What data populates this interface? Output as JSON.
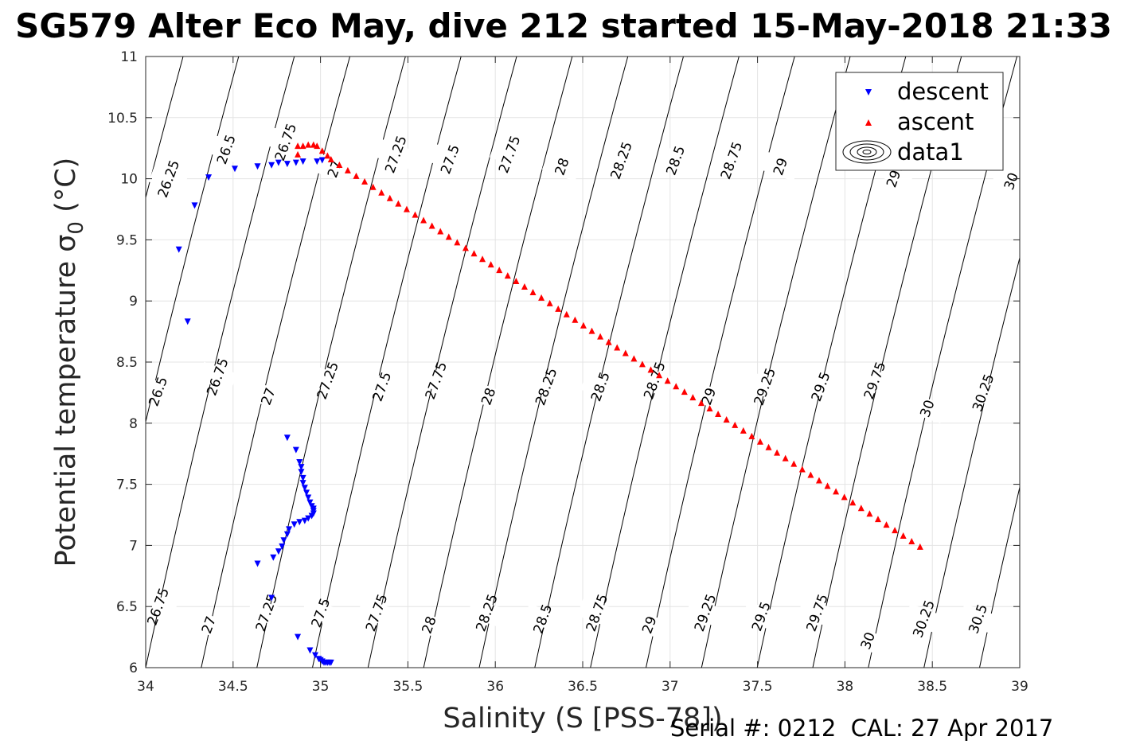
{
  "chart_data": {
    "type": "scatter",
    "title": "SG579 Alter Eco May, dive 212 started 15-May-2018 21:33",
    "xlabel": "Salinity (S [PSS-78])",
    "ylabel": "Potential temperature σ",
    "ylabel_sub": "0",
    "ylabel_unit": "(°C)",
    "xlim": [
      34,
      39
    ],
    "ylim": [
      6,
      11
    ],
    "x_ticks": [
      34,
      34.5,
      35,
      35.5,
      36,
      36.5,
      37,
      37.5,
      38,
      38.5,
      39
    ],
    "y_ticks": [
      6,
      6.5,
      7,
      7.5,
      8,
      8.5,
      9,
      9.5,
      10,
      10.5,
      11
    ],
    "grid": true,
    "legend_position": "top-right",
    "legend": [
      "descent",
      "ascent",
      "data1"
    ],
    "series": [
      {
        "name": "descent",
        "color": "#0000ff",
        "marker": "triangle-down",
        "points": [
          [
            34.19,
            9.42
          ],
          [
            34.24,
            8.83
          ],
          [
            34.28,
            9.78
          ],
          [
            34.36,
            10.01
          ],
          [
            34.51,
            10.08
          ],
          [
            34.64,
            10.1
          ],
          [
            34.72,
            10.11
          ],
          [
            34.76,
            10.13
          ],
          [
            34.81,
            10.12
          ],
          [
            34.86,
            10.13
          ],
          [
            34.9,
            10.14
          ],
          [
            34.98,
            10.14
          ],
          [
            35.01,
            10.15
          ],
          [
            34.81,
            7.88
          ],
          [
            34.86,
            7.78
          ],
          [
            34.88,
            7.68
          ],
          [
            34.89,
            7.64
          ],
          [
            34.89,
            7.6
          ],
          [
            34.9,
            7.55
          ],
          [
            34.9,
            7.51
          ],
          [
            34.91,
            7.47
          ],
          [
            34.92,
            7.43
          ],
          [
            34.93,
            7.39
          ],
          [
            34.94,
            7.35
          ],
          [
            34.95,
            7.32
          ],
          [
            34.96,
            7.3
          ],
          [
            34.96,
            7.28
          ],
          [
            34.96,
            7.26
          ],
          [
            34.95,
            7.24
          ],
          [
            34.93,
            7.22
          ],
          [
            34.91,
            7.2
          ],
          [
            34.88,
            7.19
          ],
          [
            34.85,
            7.17
          ],
          [
            34.82,
            7.13
          ],
          [
            34.81,
            7.09
          ],
          [
            34.79,
            7.04
          ],
          [
            34.78,
            6.99
          ],
          [
            34.76,
            6.95
          ],
          [
            34.73,
            6.9
          ],
          [
            34.64,
            6.85
          ],
          [
            34.72,
            6.57
          ],
          [
            34.87,
            6.25
          ],
          [
            34.94,
            6.14
          ],
          [
            34.97,
            6.1
          ],
          [
            34.99,
            6.07
          ],
          [
            35.0,
            6.06
          ],
          [
            35.01,
            6.05
          ],
          [
            35.02,
            6.04
          ],
          [
            35.03,
            6.04
          ],
          [
            35.04,
            6.04
          ],
          [
            35.05,
            6.04
          ],
          [
            35.06,
            6.04
          ]
        ]
      },
      {
        "name": "ascent",
        "color": "#ff0000",
        "marker": "triangle-up",
        "start": [
          34.85,
          10.27
        ],
        "end": [
          38.43,
          6.99
        ],
        "count": 70,
        "points_top": [
          [
            34.87,
            10.2
          ],
          [
            34.87,
            10.27
          ],
          [
            34.9,
            10.27
          ],
          [
            34.93,
            10.28
          ],
          [
            34.96,
            10.28
          ],
          [
            34.98,
            10.27
          ],
          [
            35.01,
            10.23
          ],
          [
            35.04,
            10.19
          ],
          [
            35.06,
            10.16
          ]
        ]
      },
      {
        "name": "data1",
        "type": "contour",
        "color": "#000000",
        "levels": [
          26.25,
          26.5,
          26.75,
          27,
          27.25,
          27.5,
          27.75,
          28,
          28.25,
          28.5,
          28.75,
          29,
          29.25,
          29.5,
          29.75,
          30,
          30.25,
          30.5
        ],
        "labels_top": [
          {
            "text": "26.25",
            "x": 34.13,
            "y": 10.0
          },
          {
            "text": "26.5",
            "x": 34.46,
            "y": 10.24
          },
          {
            "text": "26.75",
            "x": 34.8,
            "y": 10.3
          },
          {
            "text": "27",
            "x": 35.08,
            "y": 10.08
          },
          {
            "text": "27.25",
            "x": 35.43,
            "y": 10.2
          },
          {
            "text": "27.5",
            "x": 35.74,
            "y": 10.16
          },
          {
            "text": "27.75",
            "x": 36.08,
            "y": 10.2
          },
          {
            "text": "28",
            "x": 36.38,
            "y": 10.1
          },
          {
            "text": "28.25",
            "x": 36.72,
            "y": 10.15
          },
          {
            "text": "28.5",
            "x": 37.03,
            "y": 10.15
          },
          {
            "text": "28.75",
            "x": 37.35,
            "y": 10.15
          },
          {
            "text": "29",
            "x": 37.63,
            "y": 10.1
          },
          {
            "text": "29.5",
            "x": 38.29,
            "y": 10.05
          },
          {
            "text": "30",
            "x": 38.95,
            "y": 9.98
          }
        ],
        "labels_mid": [
          {
            "text": "26.5",
            "x": 34.07,
            "y": 8.26
          },
          {
            "text": "26.75",
            "x": 34.41,
            "y": 8.38
          },
          {
            "text": "27",
            "x": 34.7,
            "y": 8.22
          },
          {
            "text": "27.25",
            "x": 35.04,
            "y": 8.35
          },
          {
            "text": "27.5",
            "x": 35.35,
            "y": 8.3
          },
          {
            "text": "27.75",
            "x": 35.66,
            "y": 8.35
          },
          {
            "text": "28",
            "x": 35.96,
            "y": 8.22
          },
          {
            "text": "28.25",
            "x": 36.29,
            "y": 8.3
          },
          {
            "text": "28.5",
            "x": 36.6,
            "y": 8.3
          },
          {
            "text": "28.75",
            "x": 36.91,
            "y": 8.35
          },
          {
            "text": "29",
            "x": 37.22,
            "y": 8.22
          },
          {
            "text": "29.25",
            "x": 37.54,
            "y": 8.3
          },
          {
            "text": "29.5",
            "x": 37.86,
            "y": 8.3
          },
          {
            "text": "29.75",
            "x": 38.17,
            "y": 8.35
          },
          {
            "text": "30",
            "x": 38.47,
            "y": 8.12
          },
          {
            "text": "30.25",
            "x": 38.79,
            "y": 8.25
          }
        ],
        "labels_bottom": [
          {
            "text": "26.75",
            "x": 34.07,
            "y": 6.5
          },
          {
            "text": "27",
            "x": 34.36,
            "y": 6.35
          },
          {
            "text": "27.25",
            "x": 34.69,
            "y": 6.45
          },
          {
            "text": "27.5",
            "x": 35.0,
            "y": 6.45
          },
          {
            "text": "27.75",
            "x": 35.32,
            "y": 6.45
          },
          {
            "text": "28",
            "x": 35.62,
            "y": 6.35
          },
          {
            "text": "28.25",
            "x": 35.95,
            "y": 6.45
          },
          {
            "text": "28.5",
            "x": 36.27,
            "y": 6.4
          },
          {
            "text": "28.75",
            "x": 36.58,
            "y": 6.45
          },
          {
            "text": "29",
            "x": 36.88,
            "y": 6.35
          },
          {
            "text": "29.25",
            "x": 37.2,
            "y": 6.45
          },
          {
            "text": "29.5",
            "x": 37.52,
            "y": 6.42
          },
          {
            "text": "29.75",
            "x": 37.84,
            "y": 6.45
          },
          {
            "text": "30",
            "x": 38.13,
            "y": 6.22
          },
          {
            "text": "30.25",
            "x": 38.45,
            "y": 6.4
          },
          {
            "text": "30.5",
            "x": 38.76,
            "y": 6.4
          }
        ]
      }
    ]
  },
  "footer": {
    "serial_text": "Serial #: 0212  CAL: 27 Apr 2017"
  }
}
